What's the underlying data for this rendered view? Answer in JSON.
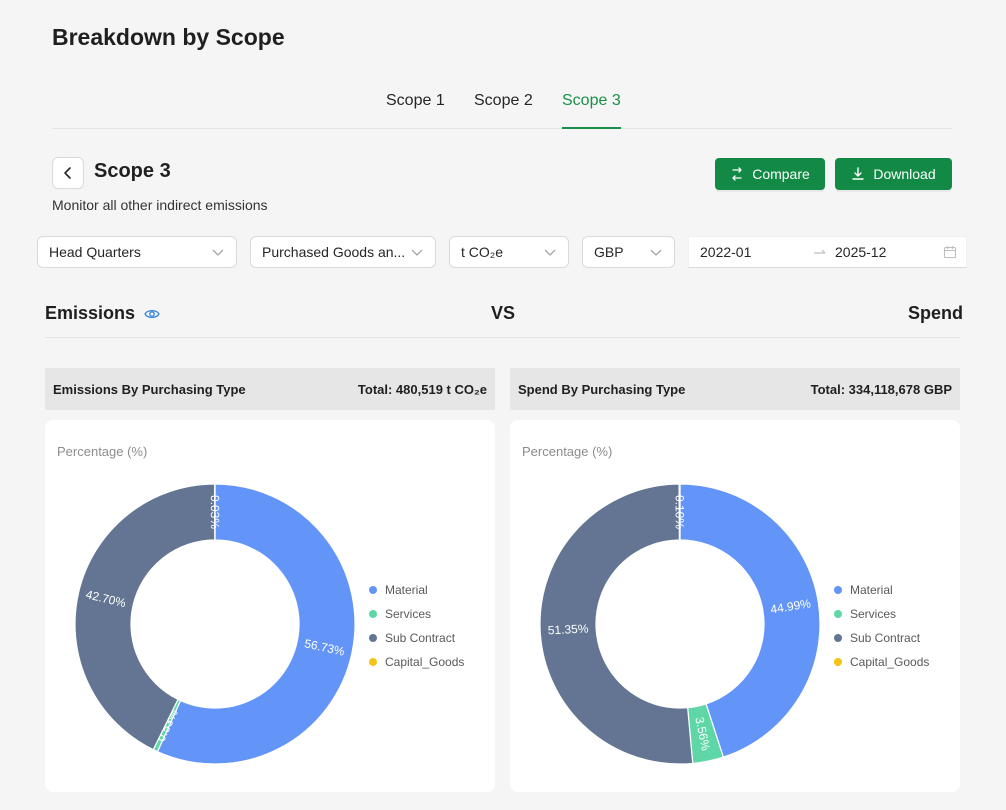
{
  "page": {
    "title": "Breakdown by Scope"
  },
  "tabs": [
    {
      "label": "Scope 1",
      "active": false
    },
    {
      "label": "Scope 2",
      "active": false
    },
    {
      "label": "Scope 3",
      "active": true
    }
  ],
  "scope": {
    "title": "Scope 3",
    "subtitle": "Monitor all other indirect emissions"
  },
  "actions": {
    "compare_label": "Compare",
    "download_label": "Download"
  },
  "filters": {
    "site": "Head Quarters",
    "category": "Purchased Goods an...",
    "unit": "t CO₂e",
    "currency": "GBP",
    "date_from": "2022-01",
    "date_to": "2025-12"
  },
  "section": {
    "left": "Emissions",
    "middle": "VS",
    "right": "Spend"
  },
  "colors": {
    "accent": "#1a8f4a",
    "material": "#6394f8",
    "services": "#5fd6a5",
    "sub_contract": "#637592",
    "capital_goods": "#f5c216"
  },
  "legend": [
    {
      "label": "Material",
      "color": "#6394f8"
    },
    {
      "label": "Services",
      "color": "#5fd6a5"
    },
    {
      "label": "Sub Contract",
      "color": "#637592"
    },
    {
      "label": "Capital_Goods",
      "color": "#f5c216"
    }
  ],
  "emissions_card": {
    "title": "Emissions By Purchasing Type",
    "total": "Total: 480,519 t CO₂e",
    "axis_label": "Percentage (%)"
  },
  "spend_card": {
    "title": "Spend By Purchasing Type",
    "total": "Total: 334,118,678 GBP",
    "axis_label": "Percentage (%)"
  },
  "chart_data": [
    {
      "type": "pie",
      "donut": true,
      "categories": [
        "Material",
        "Services",
        "Sub Contract",
        "Capital_Goods"
      ],
      "values": [
        56.73,
        0.53,
        42.7,
        0.03
      ],
      "labels": [
        "56.73%",
        "0.53%",
        "42.70%",
        "0.03%"
      ]
    },
    {
      "type": "pie",
      "donut": true,
      "categories": [
        "Material",
        "Services",
        "Sub Contract",
        "Capital_Goods"
      ],
      "values": [
        44.99,
        3.56,
        51.35,
        0.1
      ],
      "labels": [
        "44.99%",
        "3.56%",
        "51.35%",
        "0.10%"
      ]
    }
  ]
}
